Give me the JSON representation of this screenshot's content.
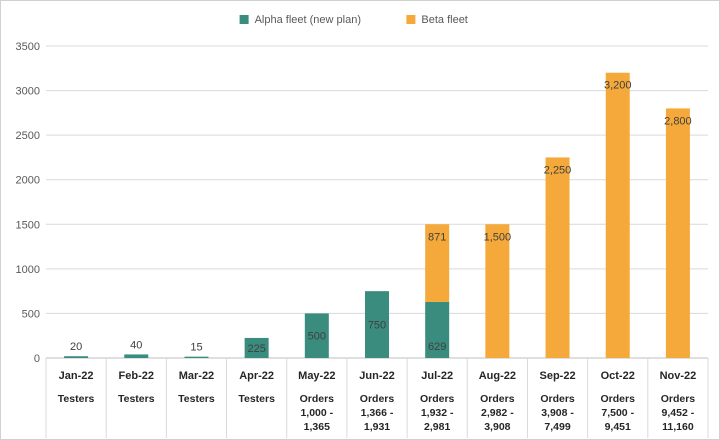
{
  "chart_data": {
    "type": "bar",
    "stacked": true,
    "categories": [
      "Jan-22",
      "Feb-22",
      "Mar-22",
      "Apr-22",
      "May-22",
      "Jun-22",
      "Jul-22",
      "Aug-22",
      "Sep-22",
      "Oct-22",
      "Nov-22"
    ],
    "sublabels": [
      [
        "Testers"
      ],
      [
        "Testers"
      ],
      [
        "Testers"
      ],
      [
        "Testers"
      ],
      [
        "Orders",
        "1,000 -",
        "1,365"
      ],
      [
        "Orders",
        "1,366 -",
        "1,931"
      ],
      [
        "Orders",
        "1,932 -",
        "2,981"
      ],
      [
        "Orders",
        "2,982 -",
        "3,908"
      ],
      [
        "Orders",
        "3,908 -",
        "7,499"
      ],
      [
        "Orders",
        "7,500 -",
        "9,451"
      ],
      [
        "Orders",
        "9,452 -",
        "11,160"
      ]
    ],
    "series": [
      {
        "name": "Alpha fleet (new plan)",
        "color": "#3a8c7e",
        "values": [
          20,
          40,
          15,
          225,
          500,
          750,
          629,
          0,
          0,
          0,
          0
        ],
        "labels": [
          "20",
          "40",
          "15",
          "225",
          "500",
          "750",
          "629",
          "",
          "",
          "",
          ""
        ]
      },
      {
        "name": "Beta fleet",
        "color": "#f5a93a",
        "values": [
          0,
          0,
          0,
          0,
          0,
          0,
          871,
          1500,
          2250,
          3200,
          2800
        ],
        "labels": [
          "",
          "",
          "",
          "",
          "",
          "",
          "871",
          "1,500",
          "2,250",
          "3,200",
          "2,800"
        ]
      }
    ],
    "yticks": [
      0,
      500,
      1000,
      1500,
      2000,
      2500,
      3000,
      3500
    ],
    "ylim": [
      0,
      3500
    ],
    "grid": true,
    "legend_position": "top"
  }
}
